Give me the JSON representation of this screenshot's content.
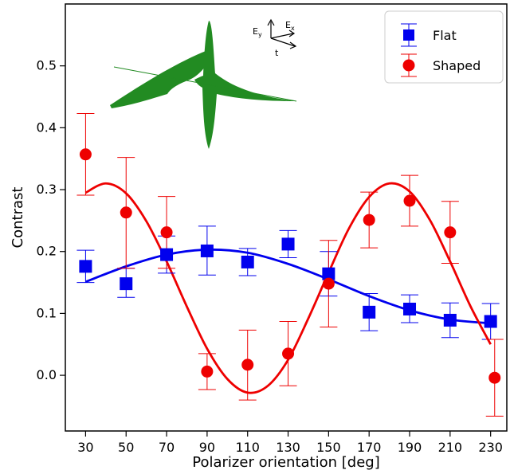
{
  "chart_data": {
    "type": "scatter",
    "title": "",
    "xlabel": "Polarizer orientation [deg]",
    "ylabel": "Contrast",
    "xlim": [
      20,
      238
    ],
    "ylim": [
      -0.09,
      0.6
    ],
    "xticks": [
      30,
      50,
      70,
      90,
      110,
      130,
      150,
      170,
      190,
      210,
      230
    ],
    "yticks": [
      0.0,
      0.1,
      0.2,
      0.3,
      0.4,
      0.5
    ],
    "ytick_labels": [
      "0.0",
      "0.1",
      "0.2",
      "0.3",
      "0.4",
      "0.5"
    ],
    "grid": false,
    "legend_position": "top-right",
    "series": [
      {
        "name": "Flat",
        "color": "#0000ee",
        "marker": "square",
        "x": [
          30,
          50,
          70,
          90,
          110,
          130,
          150,
          170,
          190,
          210,
          230
        ],
        "y": [
          0.176,
          0.148,
          0.195,
          0.201,
          0.183,
          0.212,
          0.164,
          0.102,
          0.107,
          0.089,
          0.087
        ],
        "err_low": [
          0.15,
          0.126,
          0.165,
          0.162,
          0.161,
          0.19,
          0.128,
          0.072,
          0.085,
          0.061,
          0.058
        ],
        "err_high": [
          0.202,
          0.173,
          0.225,
          0.241,
          0.205,
          0.234,
          0.2,
          0.132,
          0.13,
          0.117,
          0.116
        ],
        "fit_x": [
          30,
          50,
          70,
          90,
          110,
          130,
          150,
          170,
          190,
          210,
          230
        ],
        "fit_y": [
          0.151,
          0.176,
          0.195,
          0.203,
          0.198,
          0.18,
          0.155,
          0.128,
          0.105,
          0.09,
          0.084
        ]
      },
      {
        "name": "Shaped",
        "color": "#ee0000",
        "marker": "circle",
        "x": [
          30,
          50,
          70,
          90,
          110,
          130,
          150,
          170,
          190,
          210,
          232
        ],
        "y": [
          0.357,
          0.263,
          0.231,
          0.006,
          0.017,
          0.035,
          0.148,
          0.251,
          0.282,
          0.231,
          -0.004
        ],
        "err_low": [
          0.291,
          0.173,
          0.173,
          -0.023,
          -0.04,
          -0.017,
          0.078,
          0.206,
          0.241,
          0.181,
          -0.066
        ],
        "err_high": [
          0.423,
          0.352,
          0.289,
          0.035,
          0.073,
          0.087,
          0.218,
          0.296,
          0.323,
          0.281,
          0.058
        ],
        "fit_x": [
          30,
          40,
          50,
          60,
          70,
          80,
          90,
          100,
          110,
          120,
          130,
          140,
          150,
          160,
          170,
          180,
          190,
          200,
          210,
          220,
          230
        ],
        "fit_y": [
          0.295,
          0.31,
          0.294,
          0.249,
          0.184,
          0.111,
          0.043,
          -0.006,
          -0.028,
          -0.017,
          0.025,
          0.092,
          0.166,
          0.237,
          0.288,
          0.31,
          0.297,
          0.251,
          0.184,
          0.112,
          0.05
        ]
      }
    ],
    "inset": {
      "labels": {
        "ey": "E",
        "ey_sub": "y",
        "ex": "E",
        "ex_sub": "x",
        "t": "t"
      },
      "color": "#228b22"
    }
  }
}
